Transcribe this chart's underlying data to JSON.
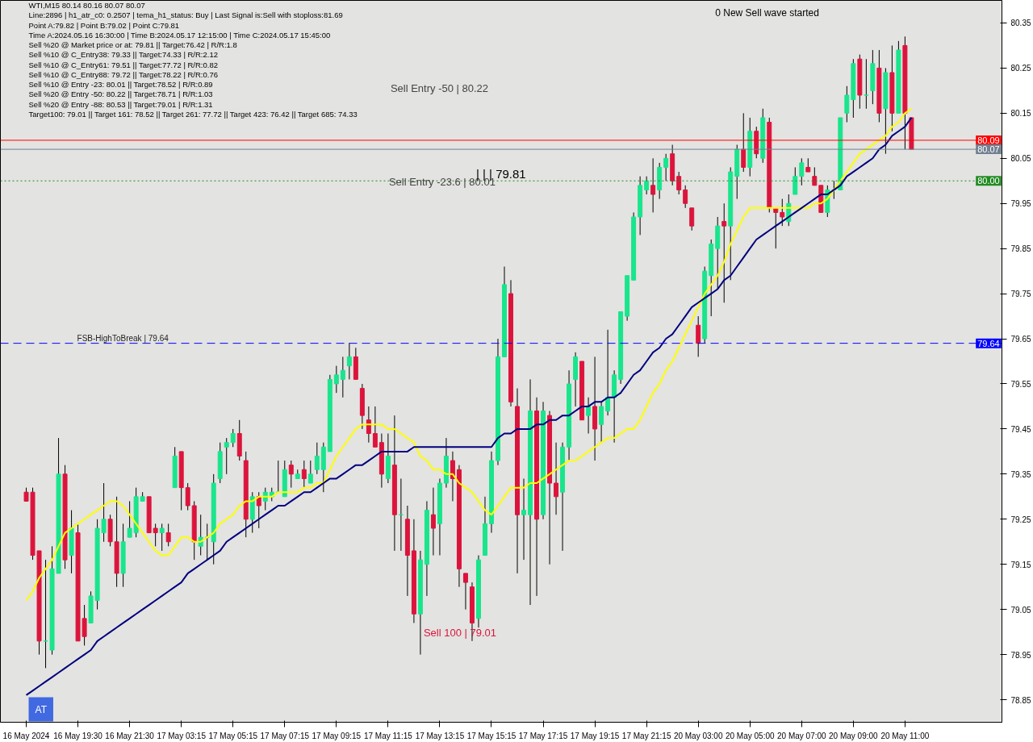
{
  "chart_data": {
    "type": "candlestick",
    "categories": [
      "16 May 2024",
      null,
      null,
      null,
      null,
      null,
      null,
      null,
      "16 May 19:30",
      null,
      null,
      null,
      null,
      null,
      null,
      null,
      "16 May 21:30",
      null,
      null,
      null,
      null,
      null,
      null,
      null,
      "17 May 03:15",
      null,
      null,
      null,
      null,
      null,
      null,
      null,
      "17 May 05:15",
      null,
      null,
      null,
      null,
      null,
      null,
      null,
      "17 May 07:15",
      null,
      null,
      null,
      null,
      null,
      null,
      null,
      "17 May 09:15",
      null,
      null,
      null,
      null,
      null,
      null,
      null,
      "17 May 11:15",
      null,
      null,
      null,
      null,
      null,
      null,
      null,
      "17 May 13:15",
      null,
      null,
      null,
      null,
      null,
      null,
      null,
      "17 May 15:15",
      null,
      null,
      null,
      null,
      null,
      null,
      null,
      "17 May 17:15",
      null,
      null,
      null,
      null,
      null,
      null,
      null,
      "17 May 19:15",
      null,
      null,
      null,
      null,
      null,
      null,
      null,
      "17 May 21:15",
      null,
      null,
      null,
      null,
      null,
      null,
      null,
      "20 May 03:00",
      null,
      null,
      null,
      null,
      null,
      null,
      null,
      "20 May 05:00",
      null,
      null,
      null,
      null,
      null,
      null,
      null,
      "20 May 07:00",
      null,
      null,
      null,
      null,
      null,
      null,
      null,
      "20 May 09:00",
      null,
      null,
      null,
      null,
      null,
      null,
      null,
      "20 May 11:00",
      null
    ],
    "ohlc": [
      [
        79.31,
        79.32,
        79.29,
        79.29
      ],
      [
        79.31,
        79.32,
        79.16,
        79.17
      ],
      [
        79.18,
        79.18,
        78.95,
        78.98
      ],
      [
        78.98,
        79.16,
        78.92,
        78.98
      ],
      [
        78.96,
        79.19,
        78.95,
        79.14
      ],
      [
        79.13,
        79.43,
        79.13,
        79.35
      ],
      [
        79.35,
        79.37,
        79.14,
        79.16
      ],
      [
        79.17,
        79.27,
        79.13,
        79.23
      ],
      [
        79.22,
        79.24,
        78.98,
        78.98
      ],
      [
        79.03,
        79.06,
        78.97,
        78.99
      ],
      [
        79.02,
        79.09,
        79.02,
        79.08
      ],
      [
        79.07,
        79.25,
        79.05,
        79.23
      ],
      [
        79.22,
        79.33,
        79.2,
        79.25
      ],
      [
        79.25,
        79.26,
        79.19,
        79.2
      ],
      [
        79.2,
        79.3,
        79.1,
        79.13
      ],
      [
        79.13,
        79.24,
        79.1,
        79.2
      ],
      [
        79.21,
        79.29,
        79.21,
        79.23
      ],
      [
        79.22,
        79.32,
        79.21,
        79.3
      ],
      [
        79.29,
        79.31,
        79.29,
        79.3
      ],
      [
        79.3,
        79.3,
        79.22,
        79.22
      ],
      [
        79.23,
        79.24,
        79.19,
        79.22
      ],
      [
        79.22,
        79.24,
        79.18,
        79.23
      ],
      [
        79.22,
        79.24,
        79.19,
        79.2
      ],
      [
        79.32,
        79.41,
        79.32,
        79.39
      ],
      [
        79.4,
        79.4,
        79.27,
        79.32
      ],
      [
        79.32,
        79.33,
        79.27,
        79.28
      ],
      [
        79.28,
        79.29,
        79.16,
        79.2
      ],
      [
        79.19,
        79.26,
        79.17,
        79.21
      ],
      [
        79.21,
        79.24,
        79.16,
        79.21
      ],
      [
        79.2,
        79.35,
        79.15,
        79.33
      ],
      [
        79.34,
        79.42,
        79.33,
        79.4
      ],
      [
        79.41,
        79.43,
        79.35,
        79.42
      ],
      [
        79.42,
        79.45,
        79.41,
        79.44
      ],
      [
        79.44,
        79.47,
        79.38,
        79.39
      ],
      [
        79.38,
        79.4,
        79.21,
        79.25
      ],
      [
        79.25,
        79.31,
        79.22,
        79.3
      ],
      [
        79.3,
        79.31,
        79.23,
        79.28
      ],
      [
        79.29,
        79.32,
        79.27,
        79.31
      ],
      [
        79.3,
        79.32,
        79.29,
        79.31
      ],
      [
        79.31,
        79.38,
        79.31,
        79.31
      ],
      [
        79.3,
        79.38,
        79.3,
        79.36
      ],
      [
        79.37,
        79.38,
        79.32,
        79.35
      ],
      [
        79.34,
        79.36,
        79.34,
        79.35
      ],
      [
        79.36,
        79.38,
        79.32,
        79.34
      ],
      [
        79.33,
        79.38,
        79.33,
        79.35
      ],
      [
        79.36,
        79.42,
        79.35,
        79.39
      ],
      [
        79.36,
        79.42,
        79.31,
        79.41
      ],
      [
        79.4,
        79.57,
        79.4,
        79.56
      ],
      [
        79.55,
        79.59,
        79.53,
        79.57
      ],
      [
        79.56,
        79.61,
        79.52,
        79.58
      ],
      [
        79.59,
        79.64,
        79.56,
        79.61
      ],
      [
        79.61,
        79.63,
        79.56,
        79.56
      ],
      [
        79.54,
        79.55,
        79.45,
        79.48
      ],
      [
        79.47,
        79.5,
        79.42,
        79.44
      ],
      [
        79.44,
        79.5,
        79.41,
        79.41
      ],
      [
        79.42,
        79.44,
        79.32,
        79.35
      ],
      [
        79.34,
        79.44,
        79.33,
        79.39
      ],
      [
        79.37,
        79.48,
        79.18,
        79.26
      ],
      [
        79.26,
        79.34,
        79.18,
        79.26
      ],
      [
        79.25,
        79.28,
        79.08,
        79.17
      ],
      [
        79.18,
        79.25,
        79.02,
        79.04
      ],
      [
        79.04,
        79.18,
        78.95,
        79.16
      ],
      [
        79.15,
        79.29,
        79.08,
        79.27
      ],
      [
        79.26,
        79.32,
        79.17,
        79.23
      ],
      [
        79.24,
        79.34,
        79.17,
        79.33
      ],
      [
        79.33,
        79.43,
        79.32,
        79.39
      ],
      [
        79.38,
        79.4,
        79.29,
        79.34
      ],
      [
        79.36,
        79.37,
        79.1,
        79.14
      ],
      [
        79.13,
        79.13,
        79.05,
        79.11
      ],
      [
        79.1,
        79.11,
        78.98,
        79.02
      ],
      [
        79.03,
        79.17,
        79.01,
        79.16
      ],
      [
        79.17,
        79.3,
        79.17,
        79.24
      ],
      [
        79.24,
        79.4,
        79.22,
        79.38
      ],
      [
        79.38,
        79.65,
        79.37,
        79.61
      ],
      [
        79.61,
        79.81,
        79.61,
        79.77
      ],
      [
        79.75,
        79.78,
        79.5,
        79.51
      ],
      [
        79.5,
        79.54,
        79.13,
        79.26
      ],
      [
        79.26,
        79.34,
        79.16,
        79.27
      ],
      [
        79.26,
        79.56,
        79.06,
        79.49
      ],
      [
        79.49,
        79.52,
        79.08,
        79.25
      ],
      [
        79.26,
        79.51,
        79.25,
        79.49
      ],
      [
        79.48,
        79.49,
        79.15,
        79.33
      ],
      [
        79.33,
        79.42,
        79.26,
        79.3
      ],
      [
        79.31,
        79.42,
        79.18,
        79.41
      ],
      [
        79.41,
        79.58,
        79.38,
        79.55
      ],
      [
        79.56,
        79.62,
        79.5,
        79.61
      ],
      [
        79.6,
        79.6,
        79.47,
        79.47
      ],
      [
        79.48,
        79.52,
        79.44,
        79.5
      ],
      [
        79.5,
        79.61,
        79.38,
        79.45
      ],
      [
        79.46,
        79.51,
        79.42,
        79.5
      ],
      [
        79.49,
        79.67,
        79.48,
        79.52
      ],
      [
        79.52,
        79.58,
        79.42,
        79.57
      ],
      [
        79.56,
        79.71,
        79.55,
        79.71
      ],
      [
        79.7,
        79.79,
        79.69,
        79.79
      ],
      [
        79.78,
        79.93,
        79.78,
        79.92
      ],
      [
        79.92,
        80.01,
        79.88,
        79.99
      ],
      [
        79.98,
        80.01,
        79.97,
        80.0
      ],
      [
        79.99,
        80.05,
        79.93,
        79.97
      ],
      [
        79.98,
        80.04,
        79.96,
        80.03
      ],
      [
        80.03,
        80.06,
        80.0,
        80.05
      ],
      [
        80.06,
        80.08,
        79.99,
        80.0
      ],
      [
        80.01,
        80.02,
        79.97,
        79.98
      ],
      [
        79.98,
        79.99,
        79.94,
        79.95
      ],
      [
        79.94,
        79.94,
        79.89,
        79.9
      ],
      [
        79.68,
        79.7,
        79.61,
        79.64
      ],
      [
        79.65,
        79.81,
        79.64,
        79.8
      ],
      [
        79.79,
        79.87,
        79.7,
        79.86
      ],
      [
        79.85,
        79.92,
        79.76,
        79.9
      ],
      [
        79.91,
        79.95,
        79.73,
        79.9
      ],
      [
        79.9,
        80.03,
        79.78,
        80.02
      ],
      [
        80.01,
        80.08,
        79.96,
        80.07
      ],
      [
        80.07,
        80.15,
        80.02,
        80.03
      ],
      [
        80.03,
        80.14,
        80.01,
        80.11
      ],
      [
        80.11,
        80.12,
        80.05,
        80.06
      ],
      [
        80.05,
        80.16,
        80.04,
        80.14
      ],
      [
        80.13,
        80.14,
        79.93,
        79.94
      ],
      [
        79.94,
        79.94,
        79.85,
        79.93
      ],
      [
        79.93,
        79.96,
        79.9,
        79.92
      ],
      [
        79.91,
        79.97,
        79.9,
        79.95
      ],
      [
        79.97,
        80.03,
        79.97,
        80.01
      ],
      [
        80.01,
        80.05,
        79.99,
        80.04
      ],
      [
        80.03,
        80.05,
        80.02,
        80.02
      ],
      [
        80.01,
        80.03,
        79.99,
        79.99
      ],
      [
        79.99,
        79.99,
        79.93,
        79.93
      ],
      [
        79.93,
        79.99,
        79.92,
        79.98
      ],
      [
        79.98,
        80.0,
        79.96,
        79.98
      ],
      [
        79.98,
        80.14,
        79.98,
        80.14
      ],
      [
        80.15,
        80.21,
        80.13,
        80.19
      ],
      [
        80.18,
        80.27,
        80.14,
        80.26
      ],
      [
        80.27,
        80.28,
        80.16,
        80.19
      ],
      [
        80.19,
        80.27,
        80.16,
        80.19
      ],
      [
        80.2,
        80.29,
        80.17,
        80.26
      ],
      [
        80.25,
        80.29,
        80.13,
        80.15
      ],
      [
        80.16,
        80.25,
        80.06,
        80.24
      ],
      [
        80.24,
        80.3,
        80.11,
        80.15
      ],
      [
        80.15,
        80.31,
        80.15,
        80.29
      ],
      [
        80.3,
        80.32,
        80.07,
        80.15
      ],
      [
        80.14,
        80.14,
        80.07,
        80.07
      ]
    ],
    "colors": [
      "#dc143c",
      "#dc143c",
      "#dc143c",
      "#19e58c",
      "#19e58c",
      "#19e58c",
      "#dc143c",
      "#19e58c",
      "#dc143c",
      "#dc143c",
      "#19e58c",
      "#19e58c",
      "#19e58c",
      "#dc143c",
      "#dc143c",
      "#19e58c",
      "#19e58c",
      "#19e58c",
      "#19e58c",
      "#dc143c",
      "#dc143c",
      "#19e58c",
      "#dc143c",
      "#19e58c",
      "#dc143c",
      "#dc143c",
      "#dc143c",
      "#19e58c",
      "#19e58c",
      "#19e58c",
      "#19e58c",
      "#19e58c",
      "#19e58c",
      "#dc143c",
      "#dc143c",
      "#19e58c",
      "#dc143c",
      "#19e58c",
      "#19e58c",
      "#19e58c",
      "#19e58c",
      "#dc143c",
      "#19e58c",
      "#dc143c",
      "#19e58c",
      "#19e58c",
      "#19e58c",
      "#19e58c",
      "#19e58c",
      "#19e58c",
      "#19e58c",
      "#dc143c",
      "#dc143c",
      "#dc143c",
      "#dc143c",
      "#dc143c",
      "#19e58c",
      "#dc143c",
      "#19e58c",
      "#dc143c",
      "#dc143c",
      "#19e58c",
      "#19e58c",
      "#dc143c",
      "#19e58c",
      "#19e58c",
      "#dc143c",
      "#dc143c",
      "#dc143c",
      "#dc143c",
      "#19e58c",
      "#19e58c",
      "#19e58c",
      "#19e58c",
      "#19e58c",
      "#dc143c",
      "#dc143c",
      "#19e58c",
      "#19e58c",
      "#dc143c",
      "#19e58c",
      "#dc143c",
      "#dc143c",
      "#19e58c",
      "#19e58c",
      "#19e58c",
      "#dc143c",
      "#19e58c",
      "#dc143c",
      "#19e58c",
      "#19e58c",
      "#19e58c",
      "#19e58c",
      "#19e58c",
      "#19e58c",
      "#19e58c",
      "#19e58c",
      "#dc143c",
      "#19e58c",
      "#19e58c",
      "#dc143c",
      "#dc143c",
      "#dc143c",
      "#dc143c",
      "#dc143c",
      "#19e58c",
      "#19e58c",
      "#19e58c",
      "#dc143c",
      "#19e58c",
      "#19e58c",
      "#dc143c",
      "#19e58c",
      "#dc143c",
      "#19e58c",
      "#dc143c",
      "#dc143c",
      "#dc143c",
      "#19e58c",
      "#19e58c",
      "#19e58c",
      "#dc143c",
      "#dc143c",
      "#dc143c",
      "#19e58c",
      "#19e58c",
      "#19e58c",
      "#19e58c",
      "#19e58c",
      "#dc143c",
      "#19e58c",
      "#19e58c",
      "#dc143c",
      "#19e58c",
      "#dc143c",
      "#19e58c",
      "#dc143c",
      "#dc143c"
    ],
    "series": [
      {
        "type": "line",
        "color": "#ffff00",
        "values": [
          79.07,
          79.09,
          79.12,
          79.14,
          79.16,
          79.19,
          79.22,
          79.23,
          79.24,
          79.25,
          79.26,
          79.27,
          79.28,
          79.29,
          79.29,
          79.28,
          79.26,
          79.24,
          79.22,
          79.2,
          79.18,
          79.17,
          79.17,
          79.19,
          79.21,
          79.21,
          79.2,
          79.2,
          79.21,
          79.22,
          79.24,
          79.25,
          79.26,
          79.28,
          79.29,
          79.29,
          79.3,
          79.3,
          79.3,
          79.31,
          79.31,
          79.31,
          79.31,
          79.32,
          79.32,
          79.33,
          79.33,
          79.36,
          79.39,
          79.41,
          79.43,
          79.45,
          79.46,
          79.46,
          79.46,
          79.46,
          79.45,
          79.45,
          79.44,
          79.43,
          79.42,
          79.39,
          79.38,
          79.36,
          79.36,
          79.35,
          79.35,
          79.33,
          79.32,
          79.31,
          79.29,
          79.27,
          79.26,
          79.28,
          79.3,
          79.32,
          79.32,
          79.32,
          79.33,
          79.33,
          79.34,
          79.35,
          79.36,
          79.37,
          79.38,
          79.38,
          79.39,
          79.4,
          79.41,
          79.42,
          79.43,
          79.43,
          79.44,
          79.45,
          79.45,
          79.47,
          79.5,
          79.53,
          79.55,
          79.58,
          79.6,
          79.63,
          79.66,
          79.69,
          79.72,
          79.75,
          79.77,
          79.79,
          79.82,
          79.86,
          79.89,
          79.92,
          79.94,
          79.94,
          79.94,
          79.94,
          79.94,
          79.94,
          79.94,
          79.94,
          79.94,
          79.94,
          79.95,
          79.95,
          79.96,
          79.98,
          80.0,
          80.02,
          80.04,
          80.06,
          80.07,
          80.08,
          80.09,
          80.1,
          80.12,
          80.13,
          80.15,
          80.16
        ]
      },
      {
        "type": "line",
        "color": "#00007f",
        "values": [
          78.86,
          78.87,
          78.88,
          78.89,
          78.9,
          78.91,
          78.92,
          78.93,
          78.94,
          78.95,
          78.96,
          78.98,
          78.99,
          79.0,
          79.01,
          79.02,
          79.03,
          79.04,
          79.05,
          79.06,
          79.07,
          79.08,
          79.09,
          79.1,
          79.11,
          79.13,
          79.14,
          79.15,
          79.16,
          79.17,
          79.18,
          79.2,
          79.21,
          79.22,
          79.23,
          79.24,
          79.25,
          79.26,
          79.27,
          79.28,
          79.28,
          79.29,
          79.3,
          79.31,
          79.31,
          79.32,
          79.33,
          79.34,
          79.34,
          79.35,
          79.36,
          79.37,
          79.37,
          79.38,
          79.39,
          79.4,
          79.4,
          79.4,
          79.4,
          79.4,
          79.41,
          79.41,
          79.41,
          79.41,
          79.41,
          79.41,
          79.41,
          79.41,
          79.41,
          79.41,
          79.41,
          79.41,
          79.41,
          79.43,
          79.44,
          79.44,
          79.45,
          79.45,
          79.45,
          79.46,
          79.46,
          79.47,
          79.47,
          79.48,
          79.48,
          79.49,
          79.5,
          79.5,
          79.51,
          79.51,
          79.52,
          79.52,
          79.53,
          79.55,
          79.57,
          79.58,
          79.6,
          79.62,
          79.63,
          79.65,
          79.66,
          79.68,
          79.7,
          79.72,
          79.73,
          79.74,
          79.75,
          79.76,
          79.78,
          79.79,
          79.81,
          79.83,
          79.85,
          79.87,
          79.88,
          79.89,
          79.9,
          79.91,
          79.92,
          79.93,
          79.94,
          79.95,
          79.96,
          79.97,
          79.97,
          79.98,
          79.99,
          80.01,
          80.02,
          80.03,
          80.04,
          80.05,
          80.07,
          80.08,
          80.1,
          80.11,
          80.12,
          80.14
        ]
      }
    ],
    "ylim": [
      78.8,
      80.4
    ],
    "yticks": [
      78.85,
      78.95,
      79.05,
      79.15,
      79.25,
      79.35,
      79.45,
      79.55,
      79.65,
      79.75,
      79.85,
      79.95,
      80.05,
      80.15,
      80.25,
      80.35
    ],
    "ref_lines": [
      {
        "axis": "y",
        "value": 80.09,
        "label": "80.09",
        "color": "#ff0000",
        "line_style": "solid"
      },
      {
        "axis": "y",
        "value": 80.07,
        "label": "80.07",
        "color": "#708090",
        "line_style": "solid"
      },
      {
        "axis": "y",
        "value": 80.0,
        "label": "80.00",
        "color": "#228b22",
        "line_style": "dotted"
      },
      {
        "axis": "y",
        "value": 79.64,
        "label": "79.64",
        "color": "#0000ff",
        "line_style": "dashed"
      }
    ],
    "annotations": [
      "WTI,M15  80.14 80.16 80.07 80.07",
      "Line:2896 | h1_atr_c0: 0.2507 | tema_h1_status: Buy | Last Signal is:Sell with stoploss:81.69",
      "Point A:79.82 | Point B:79.02 | Point C:79.81",
      "Time A:2024.05.16 16:30:00 | Time B:2024.05.17 12:15:00 | Time C:2024.05.17 15:45:00",
      "Sell %20 @ Market price or at: 79.81 || Target:76.42 | R/R:1.8",
      "Sell %10 @ C_Entry38: 79.33 || Target:74.33 | R/R:2.12",
      "Sell %10 @ C_Entry61: 79.51 || Target:77.72 | R/R:0.82",
      "Sell %10 @ C_Entry88: 79.72 || Target:78.22 | R/R:0.76",
      "Sell %10 @ Entry -23: 80.01 || Target:78.52 | R/R:0.89",
      "Sell %20 @ Entry -50: 80.22 || Target:78.71 | R/R:1.03",
      "Sell %20 @ Entry -88: 80.53 || Target:79.01 | R/R:1.31",
      "Target100: 79.01 || Target 161: 78.52 || Target 261: 77.72 || Target 423: 76.42 || Target 685: 74.33",
      "0 New Sell wave started",
      "AT",
      "Sell Entry -50 | 80.22",
      "Sell Entry -23.6 | 80.01",
      "| | | 79.81",
      "Sell 100 | 79.01",
      "FSB-HighToBreak | 79.64"
    ],
    "grid": false
  }
}
